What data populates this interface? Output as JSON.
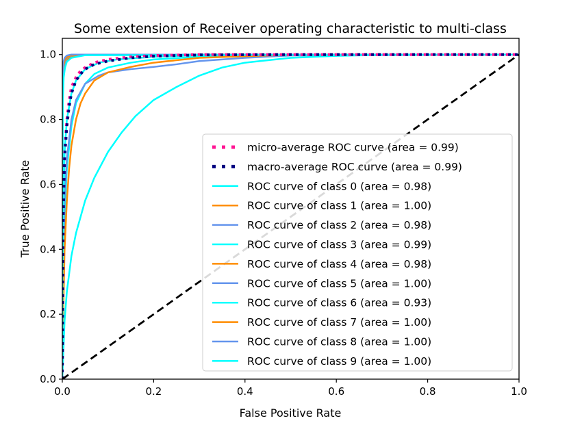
{
  "chart_data": {
    "type": "line",
    "title": "Some extension of Receiver operating characteristic to multi-class",
    "xlabel": "False Positive Rate",
    "ylabel": "True Positive Rate",
    "xlim": [
      0.0,
      1.0
    ],
    "ylim": [
      0.0,
      1.05
    ],
    "x_ticks": [
      0.0,
      0.2,
      0.4,
      0.6,
      0.8,
      1.0
    ],
    "x_tick_labels": [
      "0.0",
      "0.2",
      "0.4",
      "0.6",
      "0.8",
      "1.0"
    ],
    "y_ticks": [
      0.0,
      0.2,
      0.4,
      0.6,
      0.8,
      1.0
    ],
    "y_tick_labels": [
      "0.0",
      "0.2",
      "0.4",
      "0.6",
      "0.8",
      "1.0"
    ],
    "grid": false,
    "legend_position": "lower-right",
    "series": [
      {
        "name": "micro-average ROC curve (area = 0.99)",
        "color": "#ff1493",
        "style": "dotted",
        "x": [
          0,
          0.002,
          0.005,
          0.01,
          0.015,
          0.02,
          0.03,
          0.04,
          0.05,
          0.07,
          0.1,
          0.15,
          0.2,
          0.3,
          0.5,
          1.0
        ],
        "y": [
          0,
          0.55,
          0.7,
          0.8,
          0.86,
          0.9,
          0.93,
          0.95,
          0.96,
          0.975,
          0.985,
          0.993,
          0.997,
          1.0,
          1.0,
          1.0
        ]
      },
      {
        "name": "macro-average ROC curve (area = 0.99)",
        "color": "#000080",
        "style": "dotted",
        "x": [
          0,
          0.002,
          0.005,
          0.01,
          0.015,
          0.02,
          0.03,
          0.04,
          0.05,
          0.07,
          0.1,
          0.15,
          0.2,
          0.3,
          0.5,
          1.0
        ],
        "y": [
          0,
          0.5,
          0.68,
          0.78,
          0.84,
          0.88,
          0.92,
          0.94,
          0.955,
          0.97,
          0.98,
          0.99,
          0.995,
          0.999,
          1.0,
          1.0
        ]
      },
      {
        "name": "ROC curve of class 0 (area = 0.98)",
        "color": "#00ffff",
        "style": "solid",
        "x": [
          0,
          0.002,
          0.005,
          0.01,
          0.02,
          0.03,
          0.05,
          0.07,
          0.1,
          0.15,
          0.2,
          0.3,
          0.5,
          1.0
        ],
        "y": [
          0,
          0.3,
          0.5,
          0.65,
          0.78,
          0.85,
          0.91,
          0.94,
          0.96,
          0.975,
          0.985,
          0.993,
          0.998,
          1.0
        ]
      },
      {
        "name": "ROC curve of class 1 (area = 1.00)",
        "color": "#ff8c00",
        "style": "solid",
        "x": [
          0,
          0.001,
          0.003,
          0.006,
          0.01,
          0.02,
          0.04,
          1.0
        ],
        "y": [
          0,
          0.9,
          0.95,
          0.97,
          0.985,
          0.993,
          1.0,
          1.0
        ]
      },
      {
        "name": "ROC curve of class 2 (area = 0.98)",
        "color": "#6495ed",
        "style": "solid",
        "x": [
          0,
          0.002,
          0.005,
          0.01,
          0.02,
          0.03,
          0.05,
          0.08,
          0.1,
          0.15,
          0.2,
          0.25,
          0.3,
          0.4,
          0.5,
          1.0
        ],
        "y": [
          0,
          0.35,
          0.55,
          0.68,
          0.8,
          0.86,
          0.91,
          0.935,
          0.945,
          0.955,
          0.962,
          0.97,
          0.98,
          0.99,
          0.997,
          1.0
        ]
      },
      {
        "name": "ROC curve of class 3 (area = 0.99)",
        "color": "#00ffff",
        "style": "solid",
        "x": [
          0,
          0.002,
          0.005,
          0.01,
          0.02,
          0.03,
          0.05,
          0.08,
          0.12,
          0.2,
          0.3,
          1.0
        ],
        "y": [
          0,
          0.5,
          0.7,
          0.8,
          0.88,
          0.92,
          0.955,
          0.975,
          0.985,
          0.993,
          0.998,
          1.0
        ]
      },
      {
        "name": "ROC curve of class 4 (area = 0.98)",
        "color": "#ff8c00",
        "style": "solid",
        "x": [
          0,
          0.002,
          0.005,
          0.01,
          0.015,
          0.02,
          0.03,
          0.04,
          0.05,
          0.07,
          0.1,
          0.15,
          0.2,
          0.3,
          0.4,
          0.5,
          1.0
        ],
        "y": [
          0,
          0.2,
          0.4,
          0.55,
          0.65,
          0.72,
          0.8,
          0.85,
          0.88,
          0.92,
          0.945,
          0.962,
          0.975,
          0.99,
          0.995,
          0.999,
          1.0
        ]
      },
      {
        "name": "ROC curve of class 5 (area = 1.00)",
        "color": "#6495ed",
        "style": "solid",
        "x": [
          0,
          0.001,
          0.003,
          0.005,
          0.01,
          0.02,
          0.03,
          1.0
        ],
        "y": [
          0,
          0.92,
          0.96,
          0.975,
          0.99,
          0.997,
          1.0,
          1.0
        ]
      },
      {
        "name": "ROC curve of class 6 (area = 0.93)",
        "color": "#00ffff",
        "style": "solid",
        "x": [
          0,
          0.005,
          0.01,
          0.02,
          0.03,
          0.04,
          0.05,
          0.07,
          0.1,
          0.13,
          0.16,
          0.2,
          0.25,
          0.3,
          0.35,
          0.4,
          0.5,
          0.6,
          0.7,
          1.0
        ],
        "y": [
          0,
          0.18,
          0.27,
          0.38,
          0.45,
          0.5,
          0.55,
          0.62,
          0.7,
          0.76,
          0.81,
          0.86,
          0.9,
          0.935,
          0.96,
          0.975,
          0.99,
          0.996,
          0.999,
          1.0
        ]
      },
      {
        "name": "ROC curve of class 7 (area = 1.00)",
        "color": "#ff8c00",
        "style": "solid",
        "x": [
          0,
          0.001,
          0.003,
          0.006,
          0.01,
          0.02,
          0.03,
          1.0
        ],
        "y": [
          0,
          0.94,
          0.97,
          0.985,
          0.992,
          0.998,
          1.0,
          1.0
        ]
      },
      {
        "name": "ROC curve of class 8 (area = 1.00)",
        "color": "#6495ed",
        "style": "solid",
        "x": [
          0,
          0.001,
          0.002,
          0.005,
          0.01,
          0.02,
          1.0
        ],
        "y": [
          0,
          0.95,
          0.975,
          0.99,
          0.997,
          1.0,
          1.0
        ]
      },
      {
        "name": "ROC curve of class 9 (area = 1.00)",
        "color": "#00ffff",
        "style": "solid",
        "x": [
          0,
          0.001,
          0.003,
          0.006,
          0.01,
          0.02,
          0.05,
          1.0
        ],
        "y": [
          0,
          0.85,
          0.93,
          0.96,
          0.978,
          0.99,
          0.998,
          1.0
        ]
      }
    ],
    "reference_line": {
      "x": [
        0,
        1
      ],
      "y": [
        0,
        1
      ],
      "color": "#000000",
      "style": "dashed"
    }
  }
}
